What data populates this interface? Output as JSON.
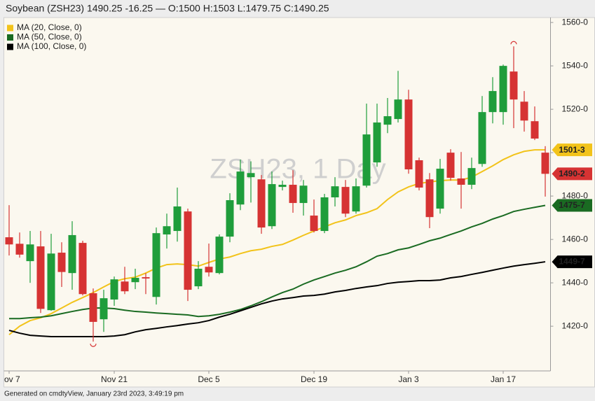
{
  "chart_data": {
    "type": "candlestick",
    "title": "Soybean (ZSH23) 1490.25 -16.25 — O:1500 H:1503 L:1479.75 C:1490.25",
    "watermark": "ZSH23, 1 Day",
    "footer": "Generated on cmdtyView, January 23rd 2023, 3:49:19 pm",
    "categories": [
      "Nov 7",
      null,
      null,
      null,
      null,
      null,
      null,
      null,
      null,
      null,
      "Nov 21",
      null,
      null,
      null,
      null,
      null,
      null,
      null,
      null,
      "Dec 5",
      null,
      null,
      null,
      null,
      null,
      null,
      null,
      null,
      null,
      "Dec 19",
      null,
      null,
      null,
      null,
      null,
      null,
      null,
      null,
      "Jan 3",
      null,
      null,
      null,
      null,
      null,
      null,
      null,
      null,
      "Jan 17",
      null,
      null,
      null,
      null
    ],
    "open": [
      1461,
      1458,
      1450,
      1456.8,
      1427.4,
      1453.9,
      1444.5,
      1458.4,
      1435.2,
      1423.2,
      1432.3,
      1440.6,
      1440.3,
      1442.6,
      1433.5,
      1462.3,
      1463.9,
      1472.9,
      1438.4,
      1447.4,
      1444.5,
      1461.3,
      1476.1,
      1488.7,
      1487.7,
      1466.1,
      1484.2,
      1485.2,
      1476.8,
      1471,
      1463.9,
      1479.4,
      1484.2,
      1472.9,
      1484.8,
      1495.5,
      1512.9,
      1515.5,
      1524.5,
      1496.5,
      1487.7,
      1474.2,
      1500,
      1488.1,
      1485.2,
      1494.8,
      1518.7,
      1518.7,
      1537.4,
      1523.5,
      1514.5,
      1500
    ],
    "high": [
      1475.8,
      1463.2,
      1463.9,
      1463.9,
      1462.6,
      1458.7,
      1468.4,
      1459.4,
      1437.4,
      1436.8,
      1442.9,
      1447.4,
      1446.5,
      1444.5,
      1465.5,
      1471.9,
      1483.9,
      1474.2,
      1450,
      1458.1,
      1462.3,
      1481.3,
      1496.8,
      1496,
      1489.7,
      1491.3,
      1487.1,
      1491.9,
      1487.4,
      1478.4,
      1481,
      1488.7,
      1487.4,
      1488.1,
      1522.6,
      1522.6,
      1525.2,
      1537.7,
      1529,
      1497.7,
      1490.6,
      1497.1,
      1501.6,
      1500.3,
      1497.7,
      1526.1,
      1534.8,
      1540.6,
      1549,
      1528.4,
      1521.3,
      1503
    ],
    "low": [
      1452.6,
      1451.6,
      1440,
      1426.1,
      1427.1,
      1438.1,
      1436.8,
      1434.2,
      1412.9,
      1417.4,
      1429.4,
      1434.8,
      1437.1,
      1434.8,
      1430,
      1455.8,
      1459,
      1431.6,
      1437.1,
      1442.9,
      1443.9,
      1458.7,
      1473.5,
      1477,
      1462.6,
      1464.8,
      1482.6,
      1472.3,
      1471,
      1463.2,
      1462.9,
      1475.2,
      1470.3,
      1471.9,
      1483.9,
      1493.5,
      1509,
      1513.9,
      1490.3,
      1482.6,
      1465.2,
      1471.9,
      1487.1,
      1474.2,
      1483.2,
      1493.5,
      1513.5,
      1512.9,
      1511.3,
      1509.7,
      1505.8,
      1479.75
    ],
    "close": [
      1457.7,
      1453,
      1457.7,
      1428,
      1453.5,
      1445,
      1462,
      1434.8,
      1422,
      1432.9,
      1441.6,
      1436.1,
      1442.3,
      1442,
      1462.9,
      1466.1,
      1475.2,
      1436.8,
      1446.5,
      1444.8,
      1461.3,
      1478.1,
      1491.3,
      1490.6,
      1465.5,
      1485.5,
      1485.2,
      1476.8,
      1484.8,
      1463.9,
      1479.4,
      1484.5,
      1471.9,
      1484.5,
      1508.4,
      1513.9,
      1516.8,
      1524.5,
      1492.3,
      1483.9,
      1470.3,
      1492.6,
      1488.4,
      1485.2,
      1492.9,
      1518.7,
      1528.4,
      1540,
      1524.5,
      1514.8,
      1506.5,
      1490.25
    ],
    "close_label": "1490-2",
    "up_color": "#1f9d3b",
    "down_color": "#d63333",
    "series": [
      {
        "name": "MA (20, Close, 0)",
        "color": "#f2c31a",
        "last_label": "1501-3",
        "values": [
          1416.1,
          1420,
          1422.6,
          1423.9,
          1425.8,
          1428.4,
          1431,
          1433.2,
          1435.5,
          1438.1,
          1440.6,
          1441.9,
          1442.6,
          1444.5,
          1446.8,
          1448.4,
          1448.7,
          1448.4,
          1447.7,
          1449.4,
          1451,
          1451.9,
          1453.5,
          1454.8,
          1455.5,
          1456.8,
          1457.7,
          1459.7,
          1461.9,
          1463.9,
          1465.8,
          1467.7,
          1469,
          1471,
          1472.3,
          1474.2,
          1478.4,
          1481.9,
          1484.2,
          1485.8,
          1486.5,
          1487.1,
          1487.4,
          1487.4,
          1488.7,
          1491.3,
          1493.9,
          1496.8,
          1499,
          1500.6,
          1501.3,
          1501.3
        ]
      },
      {
        "name": "MA (50, Close, 0)",
        "color": "#1a6b22",
        "last_label": "1475-7",
        "values": [
          1423.5,
          1423.5,
          1423.9,
          1424.2,
          1424.8,
          1425.8,
          1426.8,
          1427.7,
          1428.4,
          1428.4,
          1428.1,
          1427.4,
          1426.8,
          1426.5,
          1426.1,
          1425.8,
          1425.5,
          1425.2,
          1424.5,
          1424.8,
          1425.5,
          1426.5,
          1427.7,
          1429.4,
          1431.3,
          1433.5,
          1435.5,
          1437.1,
          1439.4,
          1441.3,
          1442.9,
          1444.5,
          1445.8,
          1447.4,
          1449.7,
          1452.3,
          1453.5,
          1455.2,
          1456.1,
          1457.7,
          1459.4,
          1460.6,
          1462.3,
          1463.9,
          1465.8,
          1467.4,
          1469.4,
          1471,
          1472.9,
          1473.9,
          1474.8,
          1475.7
        ]
      },
      {
        "name": "MA (100, Close, 0)",
        "color": "#000000",
        "last_label": "1449-7",
        "values": [
          1418.1,
          1416.8,
          1415.8,
          1415.5,
          1415.2,
          1415.2,
          1415.2,
          1415.2,
          1415.2,
          1415.2,
          1415.5,
          1416.1,
          1417.4,
          1418.4,
          1419,
          1419.7,
          1420.3,
          1421,
          1421.6,
          1422.6,
          1424.2,
          1425.5,
          1427.1,
          1428.7,
          1430.3,
          1431.6,
          1432.6,
          1433.2,
          1433.9,
          1434.2,
          1434.8,
          1435.8,
          1436.5,
          1437.4,
          1438.1,
          1438.7,
          1439.7,
          1440.3,
          1440.6,
          1441,
          1441,
          1441.3,
          1442.3,
          1442.9,
          1443.9,
          1444.8,
          1445.8,
          1446.8,
          1447.7,
          1448.4,
          1449,
          1449.7
        ]
      }
    ],
    "ylim": [
      1399.4,
      1562.3
    ],
    "yticks": [
      {
        "value": 1420,
        "label": "1420-0"
      },
      {
        "value": 1440,
        "label": "1440-0"
      },
      {
        "value": 1460,
        "label": "1460-0"
      },
      {
        "value": 1480,
        "label": "1480-0"
      },
      {
        "value": 1500,
        "label": "1500-0"
      },
      {
        "value": 1520,
        "label": "1520-0"
      },
      {
        "value": 1540,
        "label": "1540-0"
      },
      {
        "value": 1560,
        "label": "1560-0"
      }
    ],
    "grid": false,
    "legend": "top-left"
  }
}
